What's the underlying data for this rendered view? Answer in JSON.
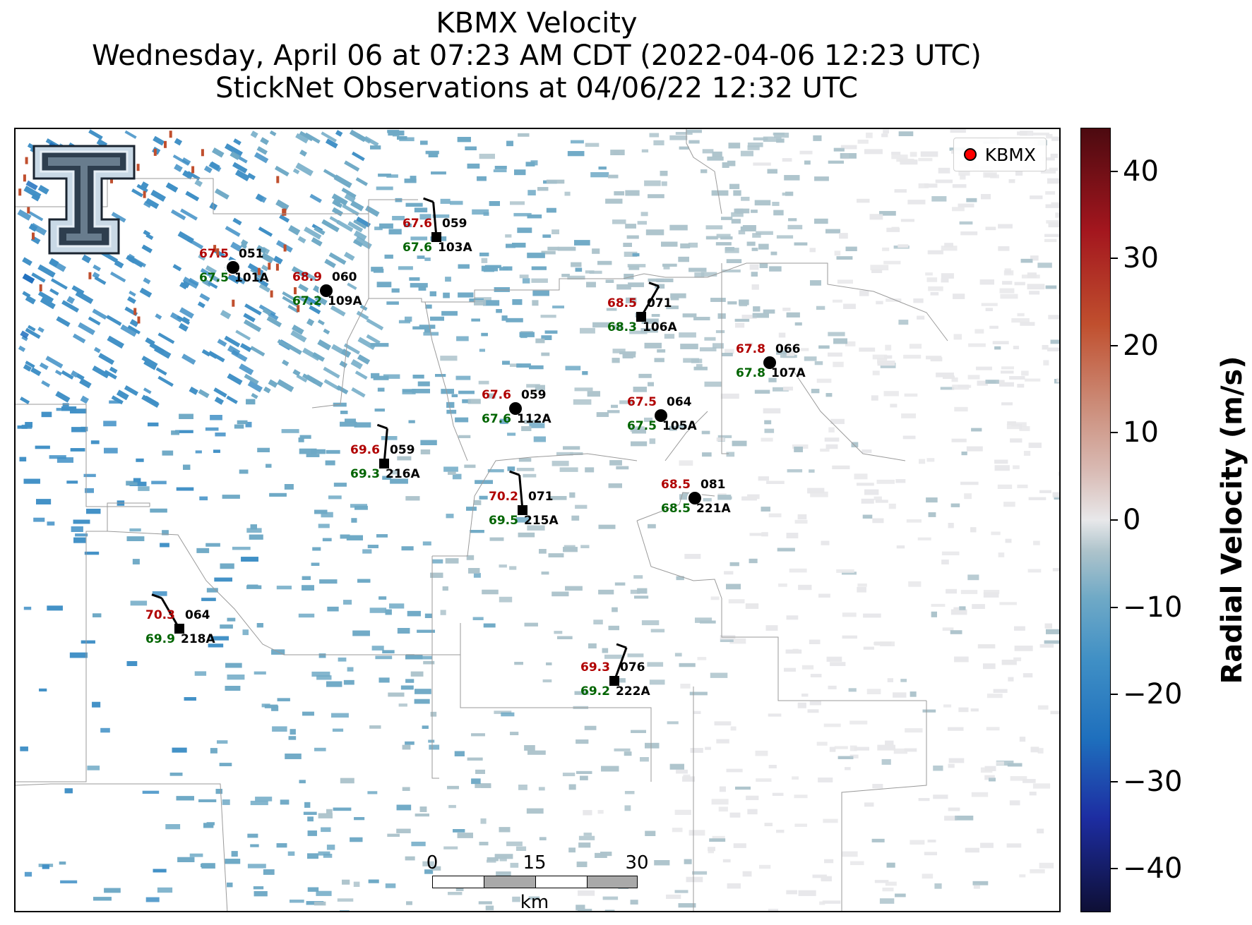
{
  "title": {
    "line1": "KBMX Velocity",
    "line2": "Wednesday, April 06 at 07:23 AM CDT (2022-04-06 12:23 UTC)",
    "line3": "StickNet Observations at 04/06/22 12:32 UTC"
  },
  "legend": {
    "label": "KBMX",
    "marker_color": "#ff0000"
  },
  "logo": {
    "icon": "texas-tech-double-t-logo",
    "colors": {
      "fill": "#2e3e4e",
      "outline": "#c9d9e6"
    }
  },
  "colorbar": {
    "label": "Radial Velocity (m/s)",
    "min": -45,
    "max": 45,
    "ticks": [
      "40",
      "30",
      "20",
      "10",
      "0",
      "−10",
      "−20",
      "−30",
      "−40"
    ],
    "tick_values": [
      40,
      30,
      20,
      10,
      0,
      -10,
      -20,
      -30,
      -40
    ],
    "colormap_stops": [
      "#0e0f35",
      "#1d2da2",
      "#1e6fbd",
      "#3f8fc5",
      "#6fa9c6",
      "#adc3cb",
      "#e8e8ea",
      "#d9bcb6",
      "#cb8a76",
      "#c04f2e",
      "#a3161e",
      "#4c0a10"
    ]
  },
  "scale_bar": {
    "ticks": [
      "0",
      "15",
      "30"
    ],
    "unit": "km"
  },
  "colors": {
    "temperature": "#b00000",
    "dewpoint": "#006400",
    "station_marker": "#000000",
    "county_lines": "#9a9a9a"
  },
  "stations": [
    {
      "id": "101A",
      "temp": "67.5",
      "dew": "67.5",
      "pres": "051",
      "marker": "circle"
    },
    {
      "id": "109A",
      "temp": "68.9",
      "dew": "67.2",
      "pres": "060",
      "marker": "circle"
    },
    {
      "id": "103A",
      "temp": "67.6",
      "dew": "67.6",
      "pres": "059",
      "marker": "square"
    },
    {
      "id": "106A",
      "temp": "68.5",
      "dew": "68.3",
      "pres": "071",
      "marker": "square"
    },
    {
      "id": "107A",
      "temp": "67.8",
      "dew": "67.8",
      "pres": "066",
      "marker": "circle"
    },
    {
      "id": "112A",
      "temp": "67.6",
      "dew": "67.6",
      "pres": "059",
      "marker": "circle"
    },
    {
      "id": "105A",
      "temp": "67.5",
      "dew": "67.5",
      "pres": "064",
      "marker": "circle"
    },
    {
      "id": "216A",
      "temp": "69.6",
      "dew": "69.3",
      "pres": "059",
      "marker": "square"
    },
    {
      "id": "221A",
      "temp": "68.5",
      "dew": "68.5",
      "pres": "081",
      "marker": "circle"
    },
    {
      "id": "215A",
      "temp": "70.2",
      "dew": "69.5",
      "pres": "071",
      "marker": "square"
    },
    {
      "id": "218A",
      "temp": "70.3",
      "dew": "69.9",
      "pres": "064",
      "marker": "square"
    },
    {
      "id": "222A",
      "temp": "69.3",
      "dew": "69.2",
      "pres": "076",
      "marker": "square"
    }
  ]
}
